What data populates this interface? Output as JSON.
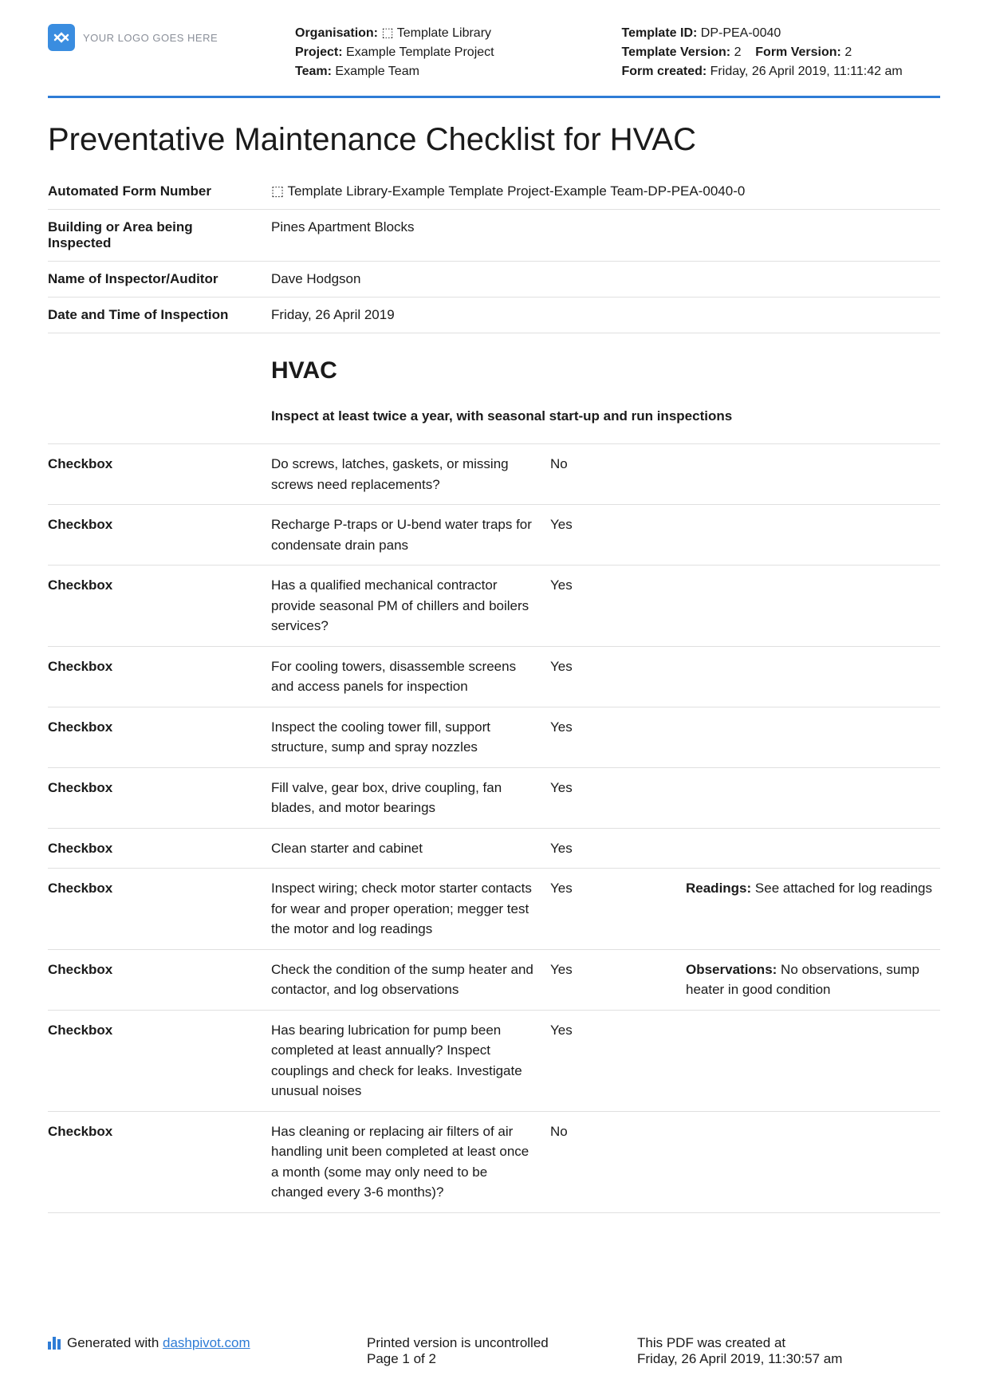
{
  "logo": {
    "placeholder": "YOUR LOGO GOES HERE"
  },
  "header": {
    "left": {
      "org_label": "Organisation:",
      "org_value": "⬚ Template Library",
      "project_label": "Project:",
      "project_value": "Example Template Project",
      "team_label": "Team:",
      "team_value": "Example Team"
    },
    "right": {
      "template_id_label": "Template ID:",
      "template_id_value": "DP-PEA-0040",
      "template_version_label": "Template Version:",
      "template_version_value": "2",
      "form_version_label": "Form Version:",
      "form_version_value": "2",
      "form_created_label": "Form created:",
      "form_created_value": "Friday, 26 April 2019, 11:11:42 am"
    }
  },
  "title": "Preventative Maintenance Checklist for HVAC",
  "info": [
    {
      "label": "Automated Form Number",
      "value": "⬚ Template Library-Example Template Project-Example Team-DP-PEA-0040-0"
    },
    {
      "label": "Building or Area being Inspected",
      "value": "Pines Apartment Blocks"
    },
    {
      "label": "Name of Inspector/Auditor",
      "value": "Dave Hodgson"
    },
    {
      "label": "Date and Time of Inspection",
      "value": "Friday, 26 April 2019"
    }
  ],
  "section": {
    "heading": "HVAC",
    "sub": "Inspect at least twice a year, with seasonal start-up and run inspections"
  },
  "checkbox_label": "Checkbox",
  "checks": [
    {
      "q": "Do screws, latches, gaskets, or missing screws need replacements?",
      "a": "No",
      "note_label": "",
      "note": ""
    },
    {
      "q": "Recharge P-traps or U-bend water traps for condensate drain pans",
      "a": "Yes",
      "note_label": "",
      "note": ""
    },
    {
      "q": "Has a qualified mechanical contractor provide seasonal PM of chillers and boilers services?",
      "a": "Yes",
      "note_label": "",
      "note": ""
    },
    {
      "q": "For cooling towers, disassemble screens and access panels for inspection",
      "a": "Yes",
      "note_label": "",
      "note": ""
    },
    {
      "q": "Inspect the cooling tower fill, support structure, sump and spray nozzles",
      "a": "Yes",
      "note_label": "",
      "note": ""
    },
    {
      "q": "Fill valve, gear box, drive coupling, fan blades, and motor bearings",
      "a": "Yes",
      "note_label": "",
      "note": ""
    },
    {
      "q": "Clean starter and cabinet",
      "a": "Yes",
      "note_label": "",
      "note": ""
    },
    {
      "q": "Inspect wiring; check motor starter contacts for wear and proper operation; megger test the motor and log readings",
      "a": "Yes",
      "note_label": "Readings:",
      "note": " See attached for log readings"
    },
    {
      "q": "Check the condition of the sump heater and contactor, and log observations",
      "a": "Yes",
      "note_label": "Observations:",
      "note": " No observations, sump heater in good condition"
    },
    {
      "q": "Has bearing lubrication for pump been completed at least annually? Inspect couplings and check for leaks. Investigate unusual noises",
      "a": "Yes",
      "note_label": "",
      "note": ""
    },
    {
      "q": "Has cleaning or replacing air filters of air handling unit been completed at least once a month (some may only need to be changed every 3-6 months)?",
      "a": "No",
      "note_label": "",
      "note": ""
    }
  ],
  "footer": {
    "generated_prefix": "Generated with ",
    "generated_link": "dashpivot.com",
    "uncontrolled": "Printed version is uncontrolled",
    "page": "Page 1 of 2",
    "created_label": "This PDF was created at",
    "created_value": "Friday, 26 April 2019, 11:30:57 am"
  }
}
